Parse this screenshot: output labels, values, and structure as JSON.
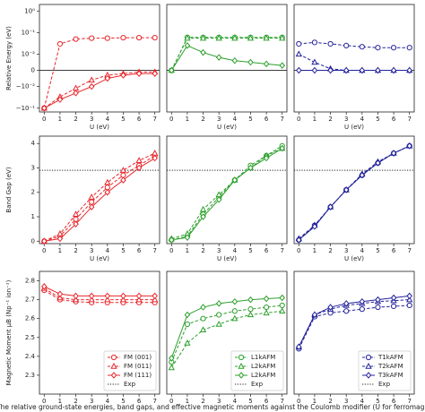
{
  "caption": "The relative ground-state energies, band gaps, and effective magnetic moments against the Coulomb modifier (U for ferromagnetic (F",
  "chart_data": [
    {
      "type": "line",
      "ylabel": "Relative Energy (eV)",
      "xlabel": "U (eV)",
      "yscale": "symlog",
      "linthresh": 0.01,
      "baseline": 0,
      "x": [
        0,
        1,
        2,
        3,
        4,
        5,
        6,
        7
      ],
      "xlim": [
        -0.3,
        7.3
      ],
      "xticks": [
        0,
        1,
        2,
        3,
        4,
        5,
        6,
        7
      ],
      "ylim": [
        -0.15,
        2
      ],
      "yticks": [
        {
          "value": 1,
          "label": "10⁰"
        },
        {
          "value": 0.1,
          "label": "10⁻¹"
        },
        {
          "value": 0.01,
          "label": "10⁻²"
        },
        0,
        {
          "value": -0.01,
          "label": "−10⁻²"
        },
        {
          "value": -0.1,
          "label": "−10⁻¹"
        }
      ],
      "series": [
        {
          "name": "FM (001)",
          "color": "#e8262b",
          "marker": "circle",
          "linestyle": "dashed",
          "values": [
            -0.1,
            0.03,
            0.05,
            0.055,
            0.055,
            0.058,
            0.058,
            0.058
          ]
        },
        {
          "name": "FM (011)",
          "color": "#e8262b",
          "marker": "triangle",
          "linestyle": "dashed",
          "values": [
            -0.1,
            -0.03,
            -0.012,
            -0.006,
            -0.003,
            -0.002,
            -0.001,
            -0.001
          ]
        },
        {
          "name": "FM (111)",
          "color": "#e8262b",
          "marker": "diamond",
          "linestyle": "solid",
          "values": [
            -0.1,
            -0.04,
            -0.02,
            -0.01,
            -0.005,
            -0.003,
            -0.002,
            -0.002
          ]
        }
      ]
    },
    {
      "type": "line",
      "xlabel": "U (eV)",
      "yscale": "symlog",
      "linthresh": 0.01,
      "baseline": 0,
      "x": [
        0,
        1,
        2,
        3,
        4,
        5,
        6,
        7
      ],
      "xlim": [
        -0.3,
        7.3
      ],
      "xticks": [
        0,
        1,
        2,
        3,
        4,
        5,
        6,
        7
      ],
      "ylim": [
        -0.15,
        2
      ],
      "series": [
        {
          "name": "L1kAFM",
          "color": "#2ca02c",
          "marker": "circle",
          "linestyle": "dashed",
          "values": [
            0,
            0.06,
            0.06,
            0.06,
            0.06,
            0.06,
            0.06,
            0.06
          ]
        },
        {
          "name": "L2kAFM",
          "color": "#2ca02c",
          "marker": "triangle",
          "linestyle": "dashed",
          "values": [
            0,
            0.055,
            0.055,
            0.055,
            0.055,
            0.055,
            0.055,
            0.055
          ]
        },
        {
          "name": "L2kAFM",
          "color": "#2ca02c",
          "marker": "diamond",
          "linestyle": "solid",
          "values": [
            0,
            0.025,
            0.012,
            0.008,
            0.006,
            0.005,
            0.004,
            0.003
          ]
        }
      ]
    },
    {
      "type": "line",
      "xlabel": "U (eV)",
      "yscale": "symlog",
      "linthresh": 0.01,
      "baseline": 0,
      "x": [
        0,
        1,
        2,
        3,
        4,
        5,
        6,
        7
      ],
      "xlim": [
        -0.3,
        7.3
      ],
      "xticks": [
        0,
        1,
        2,
        3,
        4,
        5,
        6,
        7
      ],
      "ylim": [
        -0.15,
        2
      ],
      "series": [
        {
          "name": "T1kAFM",
          "color": "#23239b",
          "marker": "circle",
          "linestyle": "dashed",
          "values": [
            0.03,
            0.035,
            0.03,
            0.025,
            0.022,
            0.02,
            0.02,
            0.02
          ]
        },
        {
          "name": "T2kAFM",
          "color": "#23239b",
          "marker": "triangle",
          "linestyle": "dashed",
          "values": [
            0.01,
            0.005,
            0.001,
            0,
            0,
            0,
            0,
            0
          ]
        },
        {
          "name": "T3kAFM",
          "color": "#23239b",
          "marker": "diamond",
          "linestyle": "solid",
          "values": [
            0,
            0,
            0,
            0,
            0,
            0,
            0,
            0
          ]
        }
      ]
    },
    {
      "type": "line",
      "ylabel": "Band Gap (eV)",
      "xlabel": "U (eV)",
      "reference": {
        "value": 2.9
      },
      "x": [
        0,
        1,
        2,
        3,
        4,
        5,
        6,
        7
      ],
      "xlim": [
        -0.3,
        7.3
      ],
      "xticks": [
        0,
        1,
        2,
        3,
        4,
        5,
        6,
        7
      ],
      "ylim": [
        -0.1,
        4.3
      ],
      "yticks": [
        0,
        1,
        2,
        3,
        4
      ],
      "series": [
        {
          "name": "FM (001)",
          "color": "#e8262b",
          "marker": "circle",
          "linestyle": "dashed",
          "values": [
            0,
            0.2,
            0.9,
            1.6,
            2.2,
            2.7,
            3.1,
            3.5
          ]
        },
        {
          "name": "FM (011)",
          "color": "#e8262b",
          "marker": "triangle",
          "linestyle": "dashed",
          "values": [
            0,
            0.3,
            1.1,
            1.8,
            2.4,
            2.9,
            3.3,
            3.6
          ]
        },
        {
          "name": "FM (111)",
          "color": "#e8262b",
          "marker": "diamond",
          "linestyle": "solid",
          "values": [
            0,
            0.1,
            0.7,
            1.4,
            2.0,
            2.5,
            3.0,
            3.4
          ]
        }
      ]
    },
    {
      "type": "line",
      "xlabel": "U (eV)",
      "reference": {
        "value": 2.9
      },
      "x": [
        0,
        1,
        2,
        3,
        4,
        5,
        6,
        7
      ],
      "xlim": [
        -0.3,
        7.3
      ],
      "xticks": [
        0,
        1,
        2,
        3,
        4,
        5,
        6,
        7
      ],
      "ylim": [
        -0.1,
        4.3
      ],
      "series": [
        {
          "name": "L1kAFM",
          "color": "#2ca02c",
          "marker": "circle",
          "linestyle": "dashed",
          "values": [
            0.05,
            0.2,
            1.1,
            1.8,
            2.5,
            3.1,
            3.5,
            3.9
          ]
        },
        {
          "name": "L2kAFM",
          "color": "#2ca02c",
          "marker": "triangle",
          "linestyle": "dashed",
          "values": [
            0.1,
            0.3,
            1.3,
            1.9,
            2.5,
            3.0,
            3.5,
            3.8
          ]
        },
        {
          "name": "L2kAFM",
          "color": "#2ca02c",
          "marker": "diamond",
          "linestyle": "solid",
          "values": [
            0.05,
            0.15,
            1.0,
            1.7,
            2.5,
            3.0,
            3.4,
            3.8
          ]
        }
      ]
    },
    {
      "type": "line",
      "xlabel": "U (eV)",
      "reference": {
        "value": 2.9
      },
      "x": [
        0,
        1,
        2,
        3,
        4,
        5,
        6,
        7
      ],
      "xlim": [
        -0.3,
        7.3
      ],
      "xticks": [
        0,
        1,
        2,
        3,
        4,
        5,
        6,
        7
      ],
      "ylim": [
        -0.1,
        4.3
      ],
      "series": [
        {
          "name": "T1kAFM",
          "color": "#23239b",
          "marker": "circle",
          "linestyle": "dashed",
          "values": [
            0.05,
            0.65,
            1.4,
            2.1,
            2.7,
            3.2,
            3.6,
            3.9
          ]
        },
        {
          "name": "T2kAFM",
          "color": "#23239b",
          "marker": "triangle",
          "linestyle": "dashed",
          "values": [
            0.1,
            0.65,
            1.4,
            2.1,
            2.75,
            3.25,
            3.6,
            3.9
          ]
        },
        {
          "name": "T3kAFM",
          "color": "#23239b",
          "marker": "diamond",
          "linestyle": "solid",
          "values": [
            0.05,
            0.6,
            1.4,
            2.1,
            2.7,
            3.2,
            3.6,
            3.9
          ]
        }
      ]
    },
    {
      "type": "line",
      "ylabel": "Magnetic Moment μB (Np⁻¹ ion⁻¹)",
      "legend": "lower right",
      "reference": {
        "name": "Exp"
      },
      "x": [
        0,
        1,
        2,
        3,
        4,
        5,
        6,
        7
      ],
      "xlim": [
        -0.3,
        7.3
      ],
      "xticks": [
        0,
        1,
        2,
        3,
        4,
        5,
        6,
        7
      ],
      "ylim": [
        2.2,
        2.85
      ],
      "yticks": [
        2.3,
        2.4,
        2.5,
        2.6,
        2.7,
        2.8
      ],
      "series": [
        {
          "name": "FM (001)",
          "color": "#e8262b",
          "marker": "circle",
          "linestyle": "dashed",
          "values": [
            2.75,
            2.7,
            2.69,
            2.685,
            2.685,
            2.685,
            2.685,
            2.685
          ]
        },
        {
          "name": "FM (011)",
          "color": "#e8262b",
          "marker": "triangle",
          "linestyle": "dashed",
          "values": [
            2.76,
            2.71,
            2.7,
            2.7,
            2.7,
            2.7,
            2.7,
            2.7
          ]
        },
        {
          "name": "FM (111)",
          "color": "#e8262b",
          "marker": "diamond",
          "linestyle": "solid",
          "values": [
            2.77,
            2.73,
            2.72,
            2.72,
            2.72,
            2.72,
            2.72,
            2.72
          ]
        }
      ]
    },
    {
      "type": "line",
      "legend": "lower right",
      "reference": {
        "name": "Exp"
      },
      "x": [
        0,
        1,
        2,
        3,
        4,
        5,
        6,
        7
      ],
      "xlim": [
        -0.3,
        7.3
      ],
      "xticks": [
        0,
        1,
        2,
        3,
        4,
        5,
        6,
        7
      ],
      "ylim": [
        2.2,
        2.85
      ],
      "series": [
        {
          "name": "L1kAFM",
          "color": "#2ca02c",
          "marker": "circle",
          "linestyle": "dashed",
          "values": [
            2.37,
            2.57,
            2.6,
            2.62,
            2.64,
            2.65,
            2.66,
            2.67
          ]
        },
        {
          "name": "L2kAFM",
          "color": "#2ca02c",
          "marker": "triangle",
          "linestyle": "dashed",
          "values": [
            2.34,
            2.47,
            2.54,
            2.57,
            2.6,
            2.62,
            2.63,
            2.64
          ]
        },
        {
          "name": "L2kAFM",
          "color": "#2ca02c",
          "marker": "diamond",
          "linestyle": "solid",
          "values": [
            2.39,
            2.62,
            2.66,
            2.68,
            2.69,
            2.7,
            2.705,
            2.71
          ]
        }
      ]
    },
    {
      "type": "line",
      "legend": "lower right",
      "reference": {
        "name": "Exp"
      },
      "x": [
        0,
        1,
        2,
        3,
        4,
        5,
        6,
        7
      ],
      "xlim": [
        -0.3,
        7.3
      ],
      "xticks": [
        0,
        1,
        2,
        3,
        4,
        5,
        6,
        7
      ],
      "ylim": [
        2.2,
        2.85
      ],
      "series": [
        {
          "name": "T1kAFM",
          "color": "#23239b",
          "marker": "circle",
          "linestyle": "dashed",
          "values": [
            2.44,
            2.61,
            2.63,
            2.64,
            2.65,
            2.66,
            2.665,
            2.67
          ]
        },
        {
          "name": "T2kAFM",
          "color": "#23239b",
          "marker": "triangle",
          "linestyle": "dashed",
          "values": [
            2.45,
            2.62,
            2.65,
            2.67,
            2.68,
            2.69,
            2.695,
            2.7
          ]
        },
        {
          "name": "T3kAFM",
          "color": "#23239b",
          "marker": "diamond",
          "linestyle": "solid",
          "values": [
            2.45,
            2.62,
            2.66,
            2.68,
            2.69,
            2.7,
            2.71,
            2.72
          ]
        }
      ]
    }
  ]
}
